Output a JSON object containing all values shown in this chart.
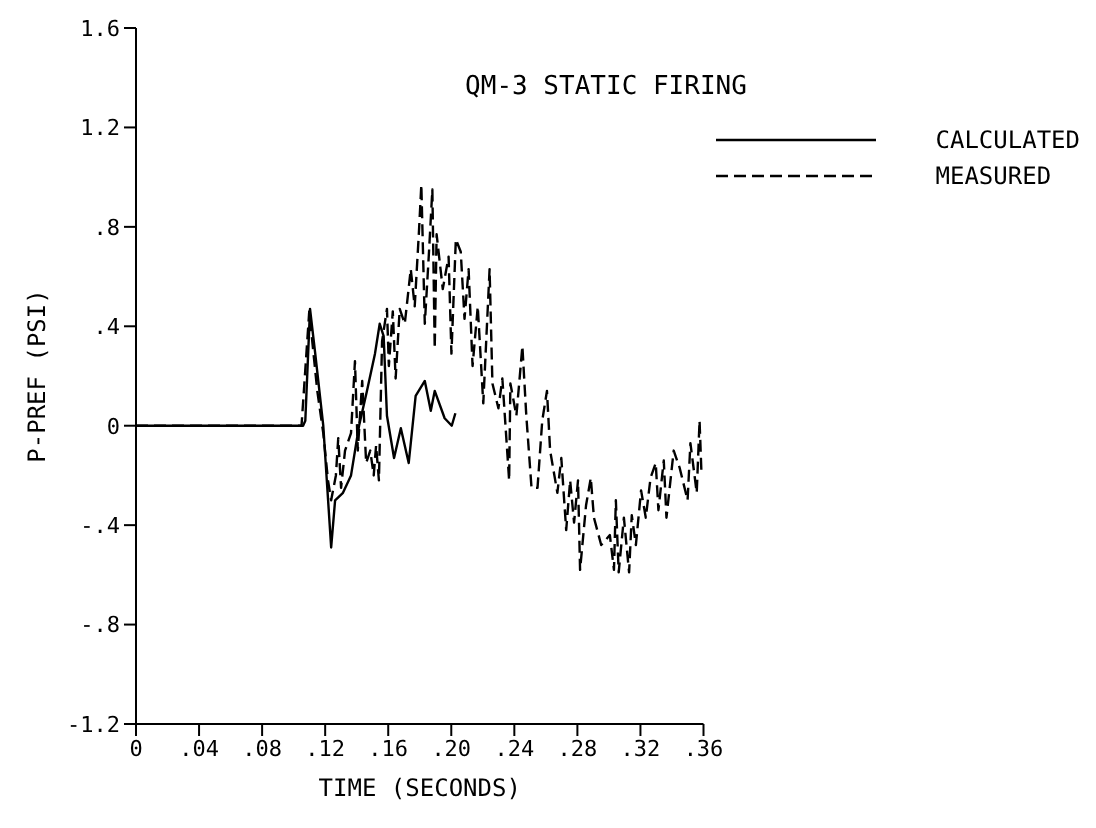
{
  "chart_data": {
    "type": "line",
    "title": "QM-3 STATIC FIRING",
    "xlabel": "TIME (SECONDS)",
    "ylabel": "P-PREF (PSI)",
    "xlim": [
      0,
      0.36
    ],
    "ylim": [
      -1.2,
      1.6
    ],
    "xticks": [
      0,
      {
        "value": 0.04,
        "label": ".04"
      },
      {
        "value": 0.08,
        "label": ".08"
      },
      {
        "value": 0.12,
        "label": ".12"
      },
      {
        "value": 0.16,
        "label": ".16"
      },
      {
        "value": 0.2,
        "label": ".20"
      },
      {
        "value": 0.24,
        "label": ".24"
      },
      {
        "value": 0.28,
        "label": ".28"
      },
      {
        "value": 0.32,
        "label": ".32"
      },
      {
        "value": 0.36,
        "label": ".36"
      }
    ],
    "yticks": [
      -1.2,
      {
        "value": -0.8,
        "label": "-.8"
      },
      {
        "value": -0.4,
        "label": "-.4"
      },
      0,
      {
        "value": 0.4,
        "label": ".4"
      },
      {
        "value": 0.8,
        "label": ".8"
      },
      1.2,
      1.6
    ],
    "grid": false,
    "legend": "top right",
    "marker": "none",
    "series": [
      {
        "name": "CALCULATED",
        "color": "#000000",
        "line_style": "solid",
        "x": [
          0,
          0.106,
          0.1074,
          0.1104,
          0.1137,
          0.1188,
          0.1238,
          0.1263,
          0.1313,
          0.1364,
          0.1415,
          0.1465,
          0.1516,
          0.1546,
          0.1571,
          0.1592,
          0.1637,
          0.168,
          0.173,
          0.1774,
          0.1832,
          0.187,
          0.1895,
          0.1958,
          0.2003,
          0.2026
        ],
        "values": [
          0,
          0,
          0.02,
          0.47,
          0.29,
          0,
          -0.49,
          -0.3,
          -0.27,
          -0.2,
          0,
          0.14,
          0.29,
          0.41,
          0.36,
          0.04,
          -0.13,
          -0.01,
          -0.15,
          0.12,
          0.18,
          0.06,
          0.14,
          0.03,
          0,
          0.05
        ]
      },
      {
        "name": "MEASURED",
        "color": "#000000",
        "line_style": "dashed",
        "x": [
          0,
          0.105,
          0.1099,
          0.115,
          0.1188,
          0.1218,
          0.1238,
          0.1268,
          0.1283,
          0.1301,
          0.1326,
          0.1364,
          0.1389,
          0.1407,
          0.1435,
          0.146,
          0.1486,
          0.1508,
          0.1523,
          0.1541,
          0.1561,
          0.1592,
          0.1604,
          0.1629,
          0.1647,
          0.1673,
          0.1705,
          0.1743,
          0.1768,
          0.1794,
          0.181,
          0.1832,
          0.1857,
          0.188,
          0.1895,
          0.1907,
          0.1946,
          0.1983,
          0.2001,
          0.2029,
          0.206,
          0.2084,
          0.211,
          0.2135,
          0.2168,
          0.2203,
          0.2243,
          0.2261,
          0.2299,
          0.2324,
          0.2367,
          0.2375,
          0.2413,
          0.2451,
          0.2476,
          0.2509,
          0.2547,
          0.2577,
          0.2607,
          0.2627,
          0.2673,
          0.2698,
          0.2729,
          0.2754,
          0.2779,
          0.2804,
          0.2817,
          0.2855,
          0.2885,
          0.2905,
          0.2951,
          0.3006,
          0.3032,
          0.3044,
          0.3062,
          0.3095,
          0.3128,
          0.3145,
          0.3171,
          0.3204,
          0.3234,
          0.3264,
          0.3297,
          0.3314,
          0.3348,
          0.3365,
          0.3411,
          0.3449,
          0.3499,
          0.3517,
          0.3557,
          0.3575,
          0.3587
        ],
        "values": [
          0,
          0,
          0.46,
          0.14,
          -0.03,
          -0.22,
          -0.3,
          -0.2,
          -0.05,
          -0.25,
          -0.1,
          -0.03,
          0.26,
          -0.1,
          0.18,
          -0.15,
          -0.1,
          -0.2,
          -0.08,
          -0.22,
          0.34,
          0.47,
          0.24,
          0.46,
          0.19,
          0.47,
          0.41,
          0.63,
          0.48,
          0.77,
          0.97,
          0.41,
          0.68,
          0.95,
          0.31,
          0.77,
          0.55,
          0.68,
          0.29,
          0.75,
          0.7,
          0.43,
          0.63,
          0.24,
          0.48,
          0.09,
          0.63,
          0.17,
          0.07,
          0.19,
          -0.22,
          0.17,
          0.04,
          0.32,
          0.04,
          -0.25,
          -0.25,
          0.02,
          0.14,
          -0.1,
          -0.27,
          -0.13,
          -0.42,
          -0.22,
          -0.39,
          -0.22,
          -0.58,
          -0.32,
          -0.21,
          -0.37,
          -0.48,
          -0.44,
          -0.58,
          -0.3,
          -0.59,
          -0.37,
          -0.59,
          -0.36,
          -0.48,
          -0.26,
          -0.37,
          -0.21,
          -0.15,
          -0.34,
          -0.14,
          -0.37,
          -0.1,
          -0.17,
          -0.3,
          -0.07,
          -0.27,
          0.02,
          -0.19
        ]
      }
    ]
  }
}
